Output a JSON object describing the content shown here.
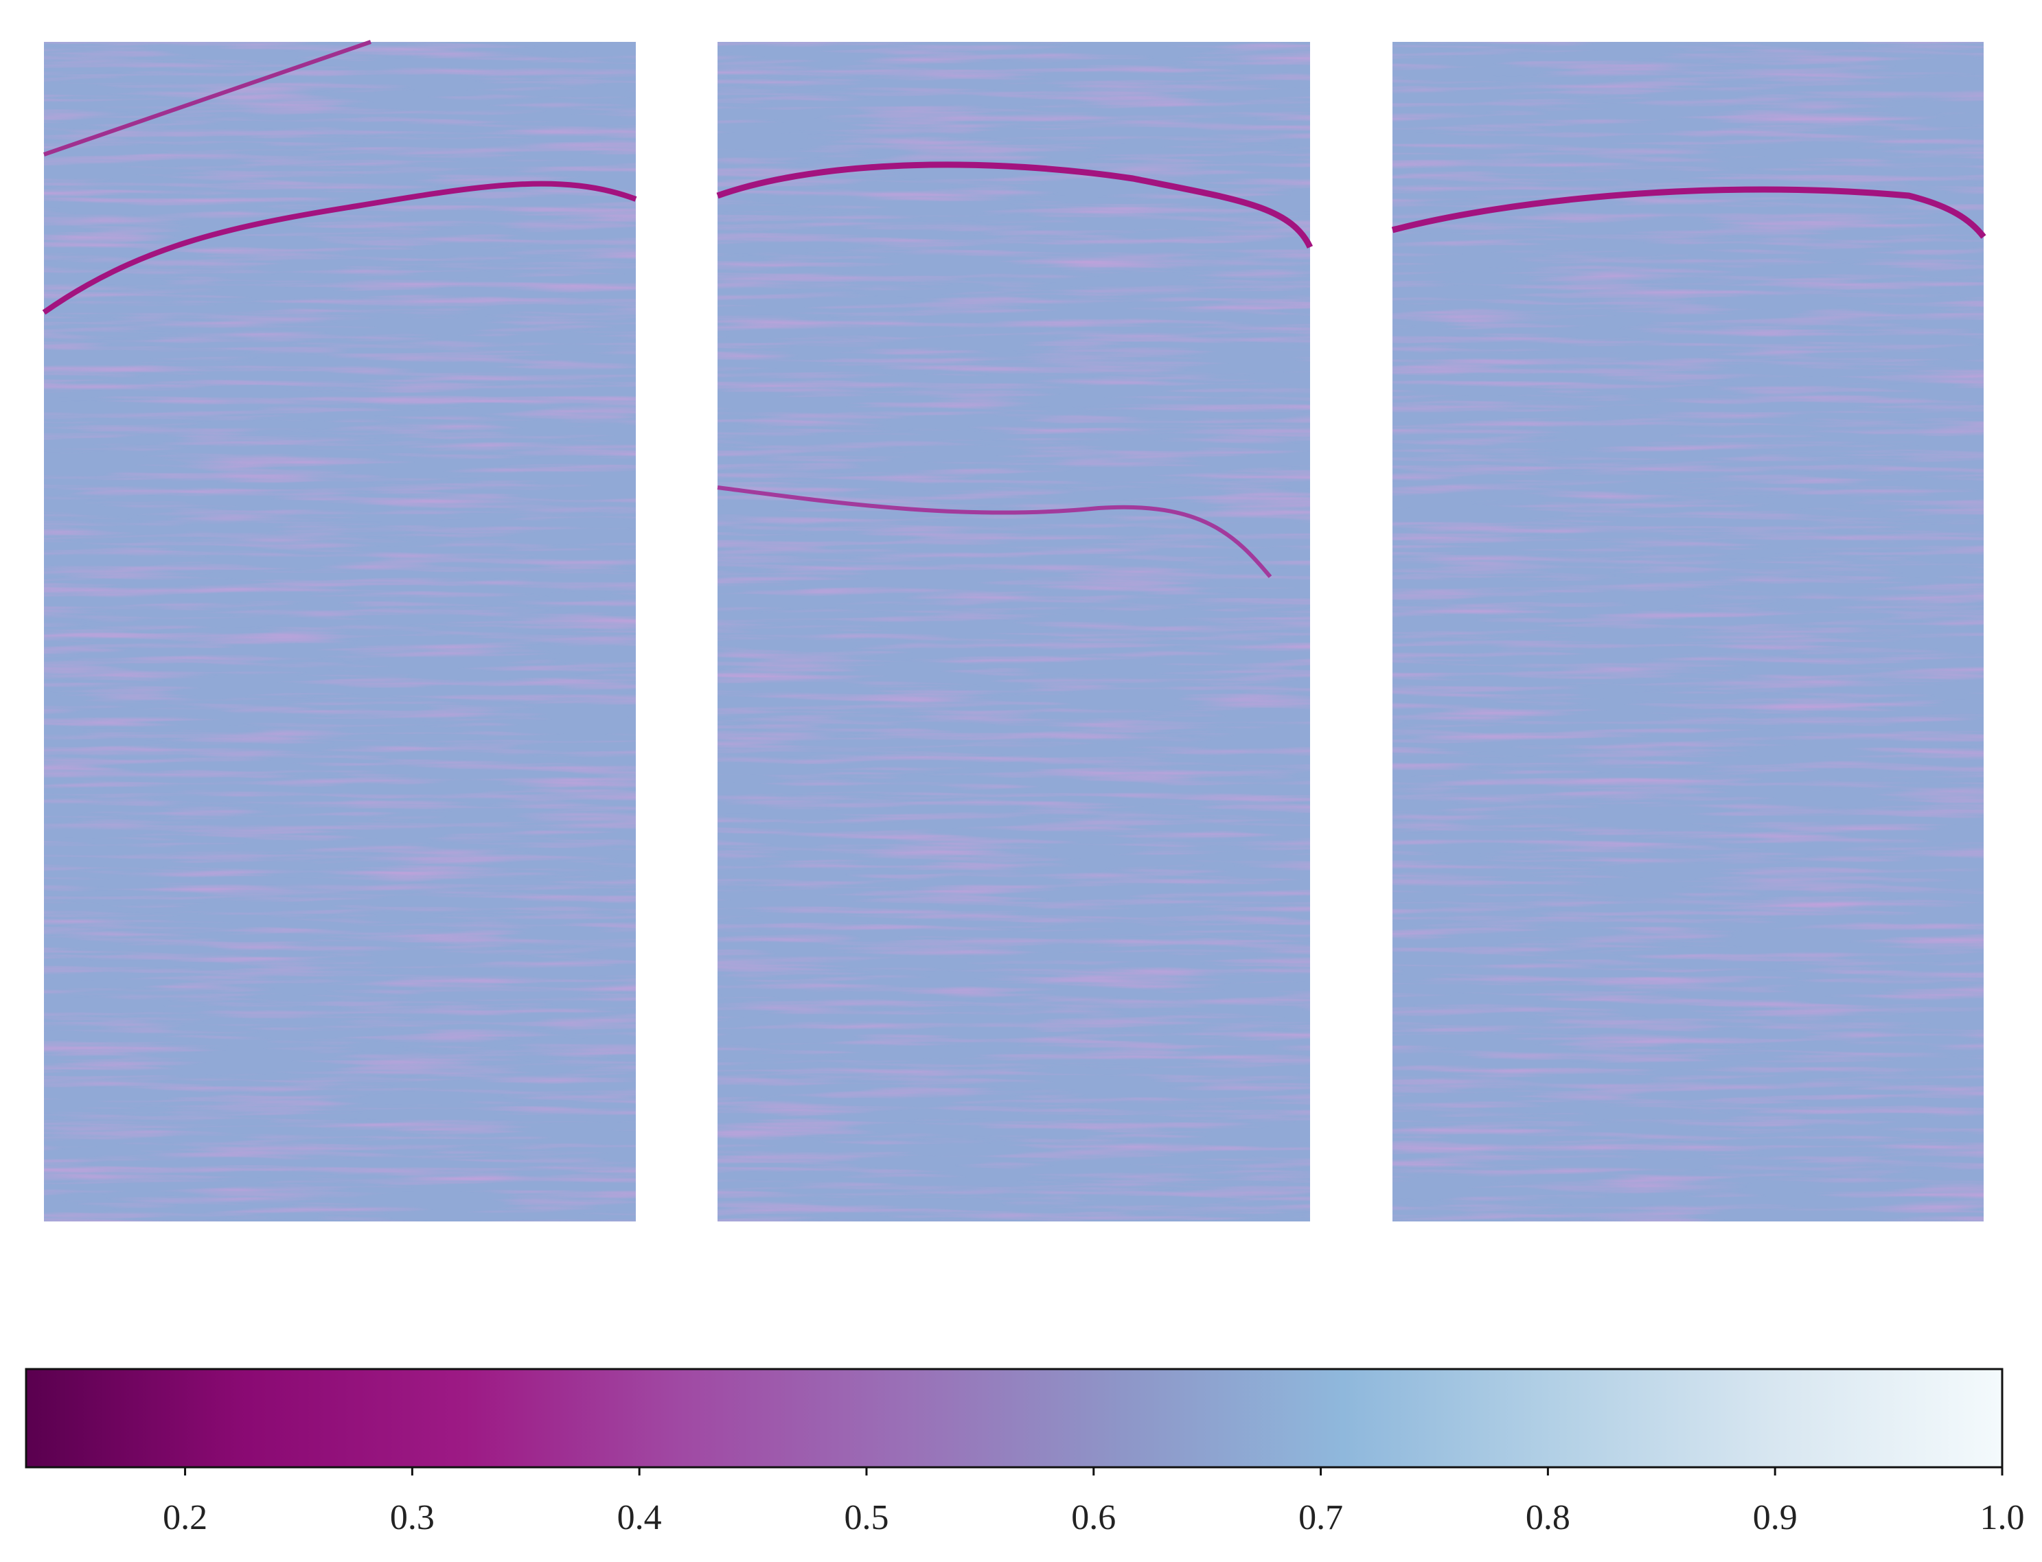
{
  "chart_data": {
    "type": "heatmap",
    "colormap": [
      "#5a004f",
      "#8a0a73",
      "#9d1a85",
      "#a04aa4",
      "#9a70b7",
      "#8e96c8",
      "#8fb8dc",
      "#b4d1e6",
      "#d9e7f1",
      "#f4fafc"
    ],
    "clim": [
      0.13,
      1.0
    ],
    "cticks": [
      0.2,
      0.3,
      0.4,
      0.5,
      0.6,
      0.7,
      0.8,
      0.9,
      {
        "value": 1.0,
        "label": "1.0"
      }
    ]
  }
}
